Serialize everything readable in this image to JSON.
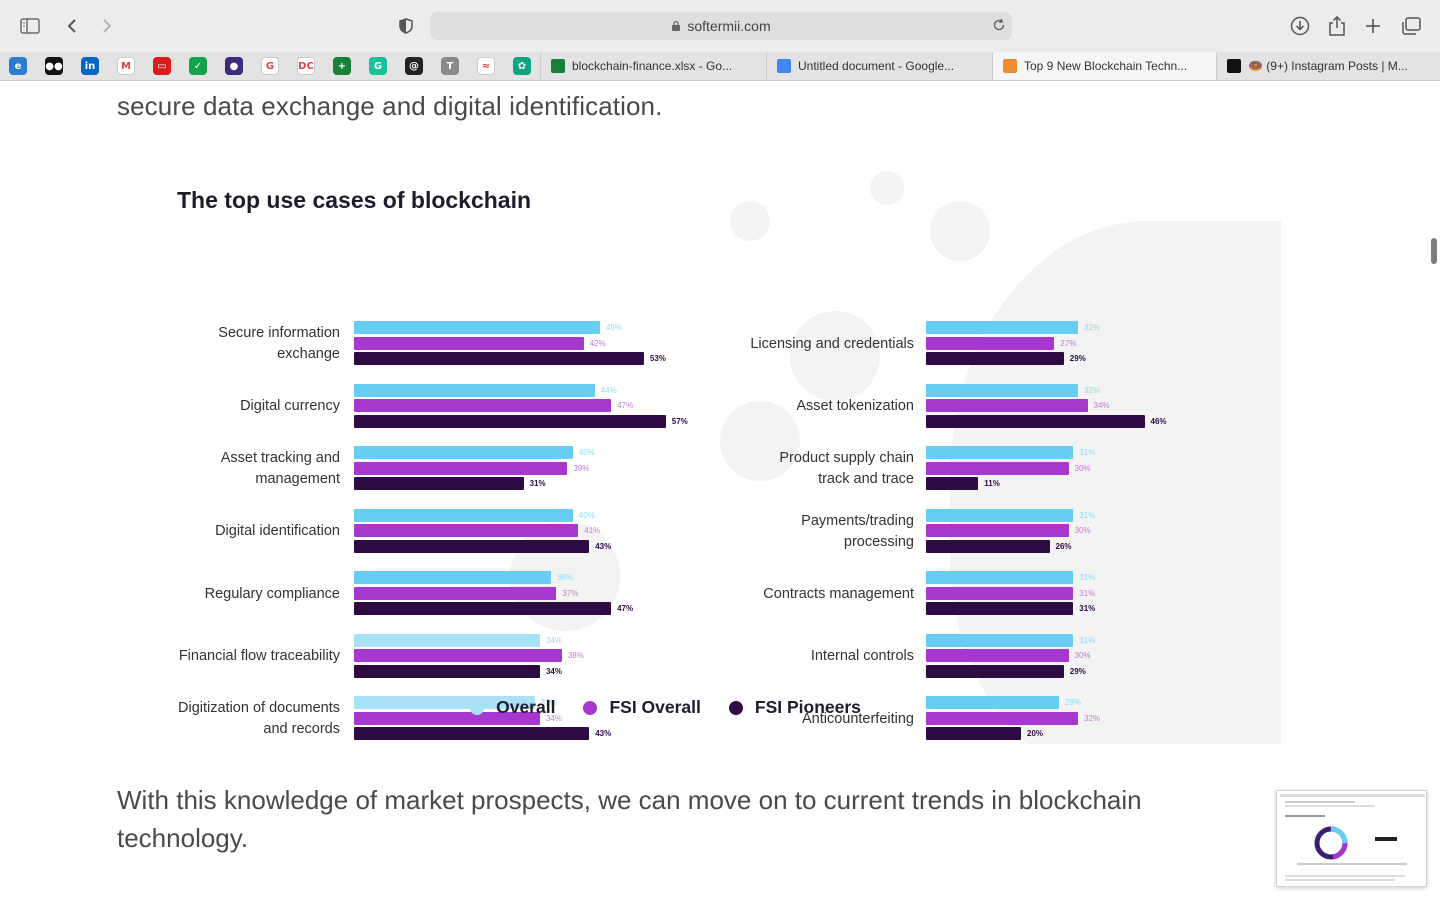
{
  "browser": {
    "url": "softermii.com",
    "bookmarks": [
      {
        "icon": "edge-icon",
        "color": "#2b7cd3",
        "glyph": "e"
      },
      {
        "icon": "medium-icon",
        "color": "#111111",
        "glyph": "●●"
      },
      {
        "icon": "linkedin-icon",
        "color": "#0a66c2",
        "glyph": "in"
      },
      {
        "icon": "gmail-icon",
        "color": "#ffffff",
        "glyph": "M"
      },
      {
        "icon": "red-app-icon",
        "color": "#d91c1c",
        "glyph": "▭"
      },
      {
        "icon": "checkmark-app-icon",
        "color": "#14a34a",
        "glyph": "✓"
      },
      {
        "icon": "purple-app-icon",
        "color": "#3d2a7a",
        "glyph": "●"
      },
      {
        "icon": "google-icon",
        "color": "#ffffff",
        "glyph": "G"
      },
      {
        "icon": "dc-icon",
        "color": "#ffffff",
        "glyph": "DC"
      },
      {
        "icon": "sheets-plus-icon",
        "color": "#188038",
        "glyph": "+"
      },
      {
        "icon": "grammarly-icon",
        "color": "#15c39a",
        "glyph": "G"
      },
      {
        "icon": "at-icon",
        "color": "#222222",
        "glyph": "@"
      },
      {
        "icon": "t-app-icon",
        "color": "#8a8a8a",
        "glyph": "T"
      },
      {
        "icon": "monday-icon",
        "color": "#ffffff",
        "glyph": "≈"
      },
      {
        "icon": "chatgpt-icon",
        "color": "#10a37f",
        "glyph": "✿"
      }
    ],
    "tabs": [
      {
        "label": "blockchain-finance.xlsx - Go...",
        "icon": "sheets-icon",
        "color": "#188038",
        "active": false
      },
      {
        "label": "Untitled document - Google...",
        "icon": "docs-icon",
        "color": "#4285f4",
        "active": false
      },
      {
        "label": "Top 9 New Blockchain Techn...",
        "icon": "softermii-icon",
        "color": "#f28b30",
        "active": true
      },
      {
        "label": "🍩 (9+) Instagram Posts | M...",
        "icon": "notion-icon",
        "color": "#111111",
        "active": false
      }
    ]
  },
  "article": {
    "top_text": "secure data exchange and digital identification.",
    "bottom_text": "With this knowledge of market prospects, we can move on to current trends in blockchain technology."
  },
  "chart_data": {
    "type": "bar",
    "title": "The top use cases of blockchain",
    "series": [
      {
        "name": "Overall",
        "color": "#67cdf2"
      },
      {
        "name": "FSI Overall",
        "color": "#a637cf"
      },
      {
        "name": "FSI Pioneers",
        "color": "#2e0b43"
      }
    ],
    "legend_position": "bottom",
    "groups": [
      {
        "column": "left",
        "lines": [
          "Secure information",
          "exchange"
        ],
        "values": [
          45,
          42,
          53
        ]
      },
      {
        "column": "left",
        "lines": [
          "Digital currency"
        ],
        "values": [
          44,
          47,
          57
        ]
      },
      {
        "column": "left",
        "lines": [
          "Asset tracking and",
          "management"
        ],
        "values": [
          40,
          39,
          31
        ]
      },
      {
        "column": "left",
        "lines": [
          "Digital identification"
        ],
        "values": [
          40,
          41,
          43
        ]
      },
      {
        "column": "left",
        "lines": [
          "Regulary compliance"
        ],
        "values": [
          36,
          37,
          47
        ]
      },
      {
        "column": "left",
        "lines": [
          "Financial flow traceability"
        ],
        "values": [
          34,
          38,
          34
        ]
      },
      {
        "column": "left",
        "lines": [
          "Digitization of documents",
          "and records"
        ],
        "values": [
          33,
          34,
          43
        ]
      },
      {
        "column": "right",
        "lines": [
          "Licensing and credentials"
        ],
        "values": [
          32,
          27,
          29
        ]
      },
      {
        "column": "right",
        "lines": [
          "Asset tokenization"
        ],
        "values": [
          32,
          34,
          46
        ]
      },
      {
        "column": "right",
        "lines": [
          "Product supply chain",
          "track and trace"
        ],
        "values": [
          31,
          30,
          11
        ]
      },
      {
        "column": "right",
        "lines": [
          "Payments/trading",
          "processing"
        ],
        "values": [
          31,
          30,
          26
        ]
      },
      {
        "column": "right",
        "lines": [
          "Contracts management"
        ],
        "values": [
          31,
          31,
          31
        ]
      },
      {
        "column": "right",
        "lines": [
          "Internal controls"
        ],
        "values": [
          31,
          30,
          29
        ]
      },
      {
        "column": "right",
        "lines": [
          "Anticounterfeiting"
        ],
        "values": [
          28,
          32,
          20
        ]
      }
    ]
  }
}
